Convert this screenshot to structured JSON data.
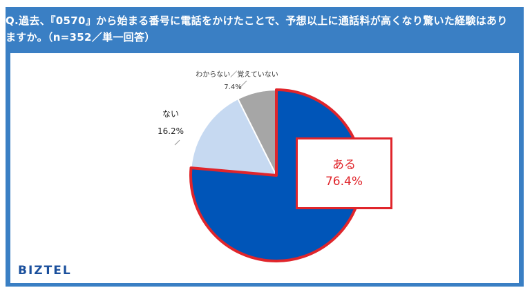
{
  "question": "Q.過去、『0570』から始まる番号に電話をかけたことで、予想以上に通話料が高くなり驚いた経験はありますか。（n=352／単一回答）",
  "brand": "BIZTEL",
  "colors": {
    "frame": "#3a7fc4",
    "aru": "#0055b8",
    "nai": "#c6d9f1",
    "wakaranai": "#a6a6a6",
    "highlight": "#e0252b"
  },
  "chart_data": {
    "type": "pie",
    "title": "",
    "slices": [
      {
        "name": "ある",
        "value": 76.4,
        "label": "76.4%",
        "color": "#0055b8"
      },
      {
        "name": "ない",
        "value": 16.2,
        "label": "16.2%",
        "color": "#c6d9f1"
      },
      {
        "name": "わからない／覚えていない",
        "value": 7.4,
        "label": "7.4%",
        "color": "#a6a6a6"
      }
    ]
  }
}
